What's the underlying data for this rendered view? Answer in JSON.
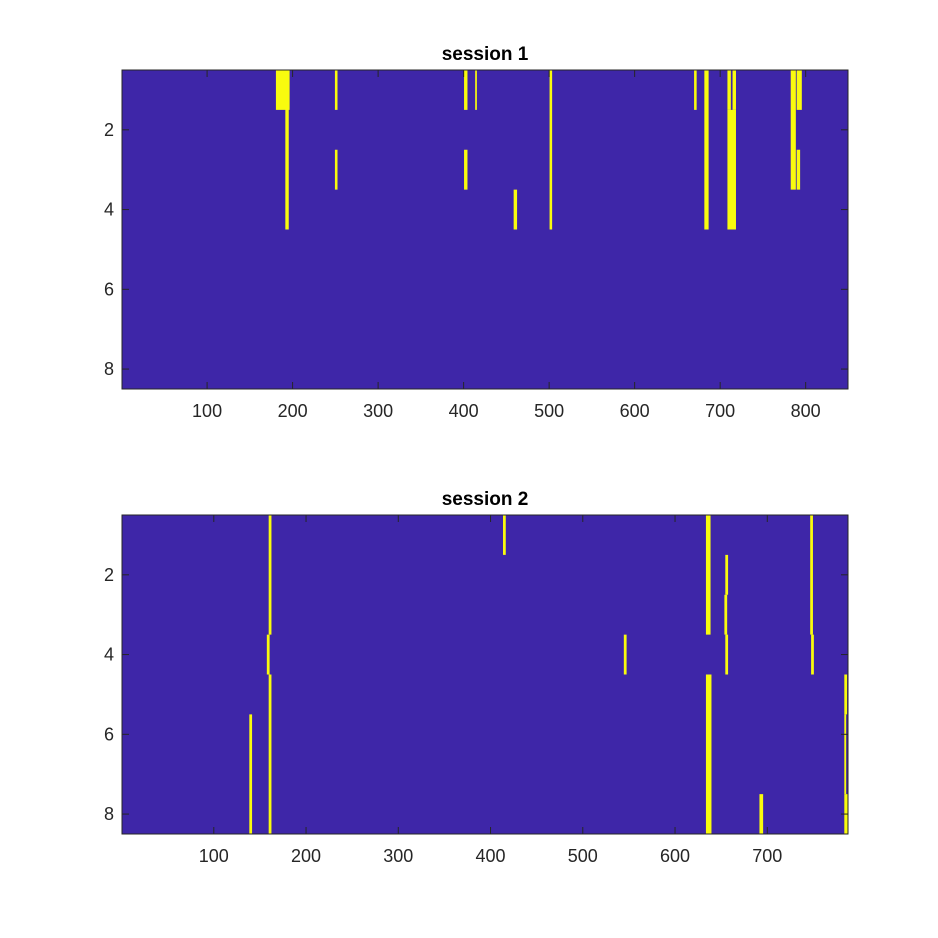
{
  "figure": {
    "background": "#ffffff",
    "axis_color": "#262626"
  },
  "chart_data": [
    {
      "type": "heatmap",
      "title": "session 1",
      "xlabel": "",
      "ylabel": "",
      "xlim": [
        0.5,
        849.5
      ],
      "ylim": [
        0.5,
        8.5
      ],
      "y_direction": "reverse",
      "xticks": [
        100,
        200,
        300,
        400,
        500,
        600,
        700,
        800
      ],
      "yticks": [
        2,
        4,
        6,
        8
      ],
      "background_value": 0,
      "colors": {
        "off": "#3e26a8",
        "on": "#f9fb0e"
      },
      "grid": false,
      "events": [
        {
          "rows": [
            1
          ],
          "x": [
            181,
            196
          ]
        },
        {
          "rows": [
            1,
            2,
            3,
            4
          ],
          "x": [
            192,
            195
          ]
        },
        {
          "rows": [
            1
          ],
          "x": [
            250,
            252
          ]
        },
        {
          "rows": [
            3
          ],
          "x": [
            250,
            252
          ]
        },
        {
          "rows": [
            1
          ],
          "x": [
            401,
            404
          ]
        },
        {
          "rows": [
            3
          ],
          "x": [
            401,
            404
          ]
        },
        {
          "rows": [
            1
          ],
          "x": [
            414,
            415
          ]
        },
        {
          "rows": [
            4
          ],
          "x": [
            459,
            462
          ]
        },
        {
          "rows": [
            1,
            2,
            3,
            4
          ],
          "x": [
            501,
            503
          ]
        },
        {
          "rows": [
            1
          ],
          "x": [
            670,
            672
          ]
        },
        {
          "rows": [
            1,
            2,
            3,
            4
          ],
          "x": [
            682,
            686
          ]
        },
        {
          "rows": [
            1
          ],
          "x": [
            709,
            712
          ]
        },
        {
          "rows": [
            1
          ],
          "x": [
            715,
            718
          ]
        },
        {
          "rows": [
            2,
            3,
            4
          ],
          "x": [
            709,
            718
          ]
        },
        {
          "rows": [
            1,
            2,
            3
          ],
          "x": [
            783,
            788
          ]
        },
        {
          "rows": [
            1
          ],
          "x": [
            790,
            795
          ]
        },
        {
          "rows": [
            3
          ],
          "x": [
            790,
            793
          ]
        }
      ]
    },
    {
      "type": "heatmap",
      "title": "session 2",
      "xlabel": "",
      "ylabel": "",
      "xlim": [
        0.5,
        787.5
      ],
      "ylim": [
        0.5,
        8.5
      ],
      "y_direction": "reverse",
      "xticks": [
        100,
        200,
        300,
        400,
        500,
        600,
        700
      ],
      "yticks": [
        2,
        4,
        6,
        8
      ],
      "background_value": 0,
      "colors": {
        "off": "#3e26a8",
        "on": "#f9fb0e"
      },
      "grid": false,
      "events": [
        {
          "rows": [
            1,
            2,
            3
          ],
          "x": [
            160,
            162
          ]
        },
        {
          "rows": [
            4
          ],
          "x": [
            158,
            160
          ]
        },
        {
          "rows": [
            5,
            6,
            7,
            8
          ],
          "x": [
            160,
            162
          ]
        },
        {
          "rows": [
            6,
            7,
            8
          ],
          "x": [
            139,
            141
          ]
        },
        {
          "rows": [
            1
          ],
          "x": [
            414,
            416
          ]
        },
        {
          "rows": [
            4
          ],
          "x": [
            545,
            547
          ]
        },
        {
          "rows": [
            1,
            2,
            3
          ],
          "x": [
            634,
            638
          ]
        },
        {
          "rows": [
            5,
            6,
            7,
            8
          ],
          "x": [
            634,
            639
          ]
        },
        {
          "rows": [
            2
          ],
          "x": [
            655,
            657
          ]
        },
        {
          "rows": [
            3
          ],
          "x": [
            654,
            656
          ]
        },
        {
          "rows": [
            4
          ],
          "x": [
            655,
            657
          ]
        },
        {
          "rows": [
            8
          ],
          "x": [
            692,
            695
          ]
        },
        {
          "rows": [
            1,
            2,
            3
          ],
          "x": [
            747,
            749
          ]
        },
        {
          "rows": [
            4
          ],
          "x": [
            748,
            750
          ]
        },
        {
          "rows": [
            5
          ],
          "x": [
            784,
            786
          ]
        },
        {
          "rows": [
            6,
            7
          ],
          "x": [
            784,
            785
          ]
        },
        {
          "rows": [
            8
          ],
          "x": [
            784,
            787
          ]
        }
      ]
    }
  ]
}
